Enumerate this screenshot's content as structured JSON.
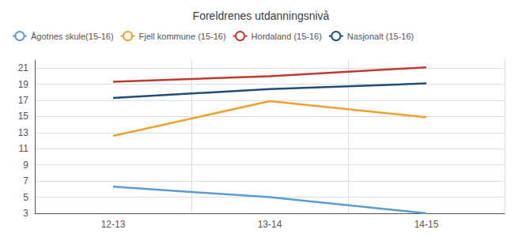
{
  "chart_data": {
    "type": "line",
    "title": "Foreldrenes utdanningsnivå",
    "categories": [
      "12-13",
      "13-14",
      "14-15"
    ],
    "series": [
      {
        "name": "Ågotnes skule(15-16)",
        "color": "#5b9bd5",
        "values": [
          6.3,
          5.0,
          3.0
        ]
      },
      {
        "name": "Fjell kommune (15-16)",
        "color": "#f0a030",
        "values": [
          12.6,
          16.9,
          14.9
        ]
      },
      {
        "name": "Hordaland (15-16)",
        "color": "#c0392b",
        "values": [
          19.3,
          20.0,
          21.1
        ]
      },
      {
        "name": "Nasjonalt (15-16)",
        "color": "#1f4e79",
        "values": [
          17.3,
          18.4,
          19.1
        ]
      }
    ],
    "ylim": [
      3,
      22
    ],
    "yticks": [
      3,
      5,
      7,
      9,
      11,
      13,
      15,
      17,
      19,
      21
    ],
    "grid": true,
    "legend": "upper left"
  }
}
